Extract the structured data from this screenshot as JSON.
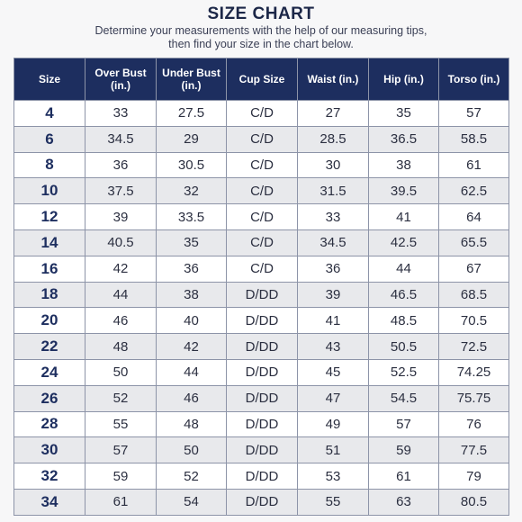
{
  "title": "SIZE CHART",
  "subtitle": [
    "Determine your measurements with the help of our measuring tips,",
    "then find your size in the chart below."
  ],
  "table": {
    "headers": [
      "Size",
      "Over Bust (in.)",
      "Under Bust (in.)",
      "Cup Size",
      "Waist (in.)",
      "Hip (in.)",
      "Torso (in.)"
    ],
    "rows": [
      [
        "4",
        "33",
        "27.5",
        "C/D",
        "27",
        "35",
        "57"
      ],
      [
        "6",
        "34.5",
        "29",
        "C/D",
        "28.5",
        "36.5",
        "58.5"
      ],
      [
        "8",
        "36",
        "30.5",
        "C/D",
        "30",
        "38",
        "61"
      ],
      [
        "10",
        "37.5",
        "32",
        "C/D",
        "31.5",
        "39.5",
        "62.5"
      ],
      [
        "12",
        "39",
        "33.5",
        "C/D",
        "33",
        "41",
        "64"
      ],
      [
        "14",
        "40.5",
        "35",
        "C/D",
        "34.5",
        "42.5",
        "65.5"
      ],
      [
        "16",
        "42",
        "36",
        "C/D",
        "36",
        "44",
        "67"
      ],
      [
        "18",
        "44",
        "38",
        "D/DD",
        "39",
        "46.5",
        "68.5"
      ],
      [
        "20",
        "46",
        "40",
        "D/DD",
        "41",
        "48.5",
        "70.5"
      ],
      [
        "22",
        "48",
        "42",
        "D/DD",
        "43",
        "50.5",
        "72.5"
      ],
      [
        "24",
        "50",
        "44",
        "D/DD",
        "45",
        "52.5",
        "74.25"
      ],
      [
        "26",
        "52",
        "46",
        "D/DD",
        "47",
        "54.5",
        "75.75"
      ],
      [
        "28",
        "55",
        "48",
        "D/DD",
        "49",
        "57",
        "76"
      ],
      [
        "30",
        "57",
        "50",
        "D/DD",
        "51",
        "59",
        "77.5"
      ],
      [
        "32",
        "59",
        "52",
        "D/DD",
        "53",
        "61",
        "79"
      ],
      [
        "34",
        "61",
        "54",
        "D/DD",
        "55",
        "63",
        "80.5"
      ]
    ]
  },
  "colors": {
    "header_bg": "#1d2e5f",
    "stripe": "#e8e9ec",
    "title": "#1c2748"
  }
}
